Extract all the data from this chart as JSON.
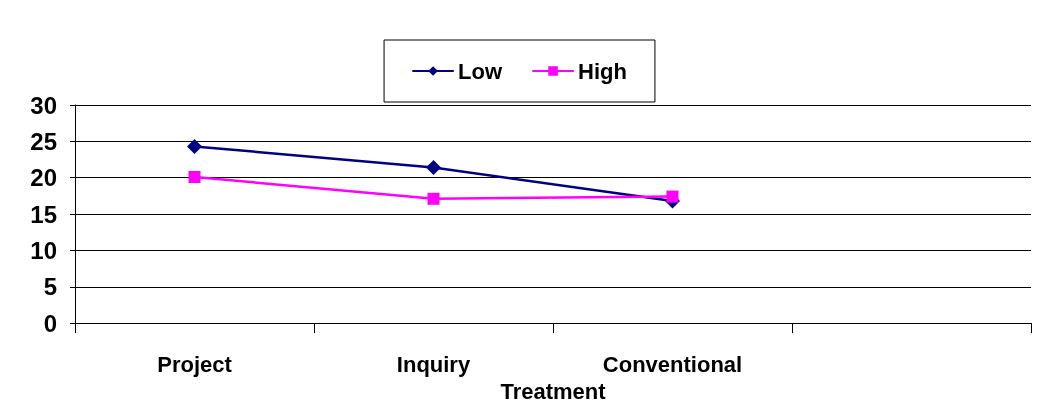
{
  "chart_data": {
    "type": "line",
    "xlabel": "Treatment",
    "categories": [
      "Project",
      "Inquiry",
      "Conventional",
      null
    ],
    "series": [
      {
        "name": "Low",
        "color": "#000080",
        "marker": "diamond",
        "values": [
          24.3,
          21.4,
          16.8,
          null
        ]
      },
      {
        "name": "High",
        "color": "#ff00ff",
        "marker": "square",
        "values": [
          20.1,
          17.1,
          17.4,
          null
        ]
      }
    ],
    "ylim": [
      0,
      30
    ],
    "yticks": [
      0,
      5,
      10,
      15,
      20,
      25,
      30
    ],
    "grid": "y",
    "legend": "top",
    "line_style": "solid"
  }
}
